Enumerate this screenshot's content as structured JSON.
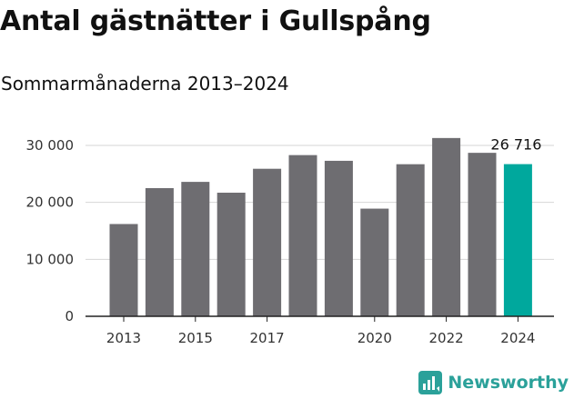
{
  "title": "Antal gästnätter i Gullspång",
  "subtitle": "Sommarmånaderna 2013–2024",
  "brand": {
    "name": "Newsworthy",
    "color": "#2ba19a",
    "icon": "newsworthy-logo-icon"
  },
  "colors": {
    "bar": "#6e6d71",
    "highlight": "#00a89d",
    "grid": "#d6d6d6",
    "axis": "#222222"
  },
  "chart_data": {
    "type": "bar",
    "categories": [
      "2013",
      "2014",
      "2015",
      "2016",
      "2017",
      "2018",
      "2019",
      "2020",
      "2021",
      "2022",
      "2023",
      "2024"
    ],
    "values": [
      16200,
      22500,
      23600,
      21700,
      25900,
      28300,
      27300,
      18900,
      26700,
      31300,
      28700,
      26716
    ],
    "highlight_index": 11,
    "x_tick_labels": [
      "2013",
      "",
      "2015",
      "",
      "2017",
      "",
      "",
      "2020",
      "",
      "2022",
      "",
      "2024"
    ],
    "y_ticks": [
      {
        "value": 0,
        "label": "0"
      },
      {
        "value": 10000,
        "label": "10 000"
      },
      {
        "value": 20000,
        "label": "20 000"
      },
      {
        "value": 30000,
        "label": "30 000"
      }
    ],
    "ylim": [
      0,
      32000
    ],
    "data_labels": [
      {
        "index": 11,
        "text": "26 716"
      }
    ],
    "grid": true
  }
}
